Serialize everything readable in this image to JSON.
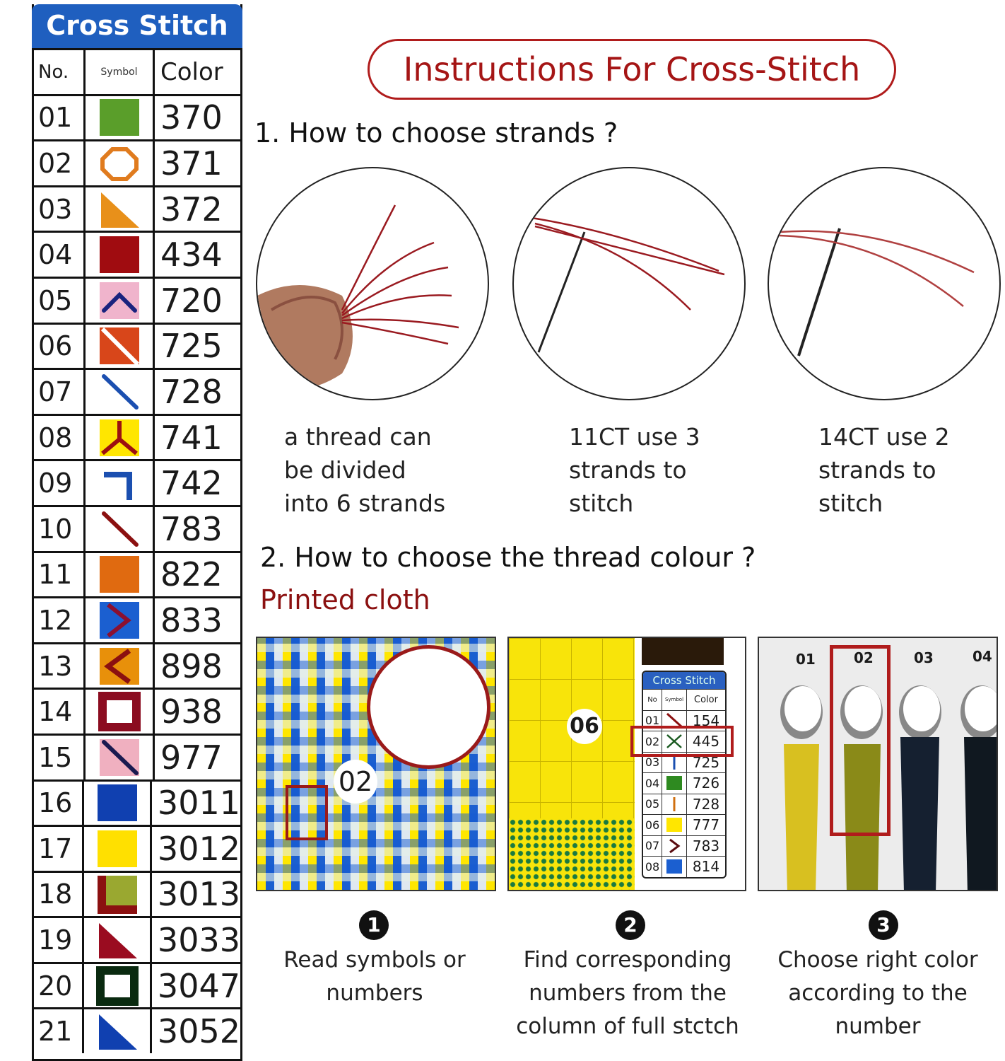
{
  "legend": {
    "title": "Cross Stitch",
    "headers": {
      "no": "No.",
      "symbol": "Symbol",
      "color": "Color"
    },
    "rows": [
      {
        "no": "01",
        "color": "370",
        "shape": "square",
        "bg": "#5a9e2a",
        "fg": ""
      },
      {
        "no": "02",
        "color": "371",
        "shape": "octagon",
        "bg": "",
        "fg": "#e07b1e"
      },
      {
        "no": "03",
        "color": "372",
        "shape": "triangle",
        "bg": "",
        "fg": "#e8901a"
      },
      {
        "no": "04",
        "color": "434",
        "shape": "square",
        "bg": "#a00c10",
        "fg": ""
      },
      {
        "no": "05",
        "color": "720",
        "shape": "caret-up",
        "bg": "#f0b4cc",
        "fg": "#1a237e"
      },
      {
        "no": "06",
        "color": "725",
        "shape": "split-diagonal",
        "bg": "#d8461a",
        "fg": "#ffffff"
      },
      {
        "no": "07",
        "color": "728",
        "shape": "diagonal",
        "bg": "",
        "fg": "#1b4fb0"
      },
      {
        "no": "08",
        "color": "741",
        "shape": "y-mark",
        "bg": "#ffe600",
        "fg": "#9c1010"
      },
      {
        "no": "09",
        "color": "742",
        "shape": "corner",
        "bg": "",
        "fg": "#1b4fb0"
      },
      {
        "no": "10",
        "color": "783",
        "shape": "diagonal",
        "bg": "",
        "fg": "#8b1010"
      },
      {
        "no": "11",
        "color": "822",
        "shape": "square",
        "bg": "#e06a10",
        "fg": ""
      },
      {
        "no": "12",
        "color": "833",
        "shape": "chevron-right",
        "bg": "#1b5fd0",
        "fg": "#8b1030"
      },
      {
        "no": "13",
        "color": "898",
        "shape": "chevron-left",
        "bg": "#e8900a",
        "fg": "#8b1010"
      },
      {
        "no": "14",
        "color": "938",
        "shape": "frame",
        "bg": "",
        "fg": "#8b0c20"
      },
      {
        "no": "15",
        "color": "977",
        "shape": "diagonal",
        "bg": "#f0b0c0",
        "fg": "#1a1a50"
      },
      {
        "no": "16",
        "color": "3011",
        "shape": "square",
        "bg": "#1040b0",
        "fg": ""
      },
      {
        "no": "17",
        "color": "3012",
        "shape": "square",
        "bg": "#ffe000",
        "fg": ""
      },
      {
        "no": "18",
        "color": "3013",
        "shape": "l-mark",
        "bg": "#9aa830",
        "fg": "#8b1010"
      },
      {
        "no": "19",
        "color": "3033",
        "shape": "triangle",
        "bg": "",
        "fg": "#9a0c20"
      },
      {
        "no": "20",
        "color": "3047",
        "shape": "frame",
        "bg": "",
        "fg": "#0a2a10"
      },
      {
        "no": "21",
        "color": "3052",
        "shape": "triangle",
        "bg": "",
        "fg": "#1040b0"
      }
    ]
  },
  "instructions": {
    "title": "Instructions For Cross-Stitch",
    "accent_color": "#a51515",
    "step1": {
      "heading": "1. How to choose strands ?",
      "items": [
        {
          "lines": [
            "a thread can",
            "be divided",
            "into 6 strands"
          ]
        },
        {
          "lines": [
            "11CT use 3",
            "strands to",
            "stitch"
          ]
        },
        {
          "lines": [
            "14CT use 2",
            "strands to",
            "stitch"
          ]
        }
      ]
    },
    "step2": {
      "heading": "2. How to choose the thread colour ?",
      "subheading": "Printed cloth",
      "panel1": {
        "label": "02"
      },
      "panel2": {
        "label": "06",
        "mini_table": {
          "title": "Cross Stitch",
          "headers": [
            "No",
            "Symbol",
            "Color"
          ],
          "rows": [
            {
              "no": "01",
              "color": "154",
              "fg": "#8b1010"
            },
            {
              "no": "02",
              "color": "445",
              "fg": "#1a5a20"
            },
            {
              "no": "03",
              "color": "725",
              "fg": "#1b4fb0"
            },
            {
              "no": "04",
              "color": "726",
              "fg": "#2e8a20"
            },
            {
              "no": "05",
              "color": "728",
              "fg": "#d07010"
            },
            {
              "no": "06",
              "color": "777",
              "fg": "#ffe600"
            },
            {
              "no": "07",
              "color": "783",
              "fg": "#5a0c10"
            },
            {
              "no": "08",
              "color": "814",
              "fg": "#1b5fd0"
            }
          ]
        }
      },
      "panel3": {
        "labels": [
          "01",
          "02",
          "03",
          "04"
        ]
      },
      "steps": [
        {
          "num": "1",
          "lines": [
            "Read symbols or",
            "numbers"
          ]
        },
        {
          "num": "2",
          "lines": [
            "Find corresponding",
            "numbers from the",
            "column of full stctch"
          ]
        },
        {
          "num": "3",
          "lines": [
            "Choose right color",
            "according to the",
            "number"
          ]
        }
      ]
    }
  }
}
